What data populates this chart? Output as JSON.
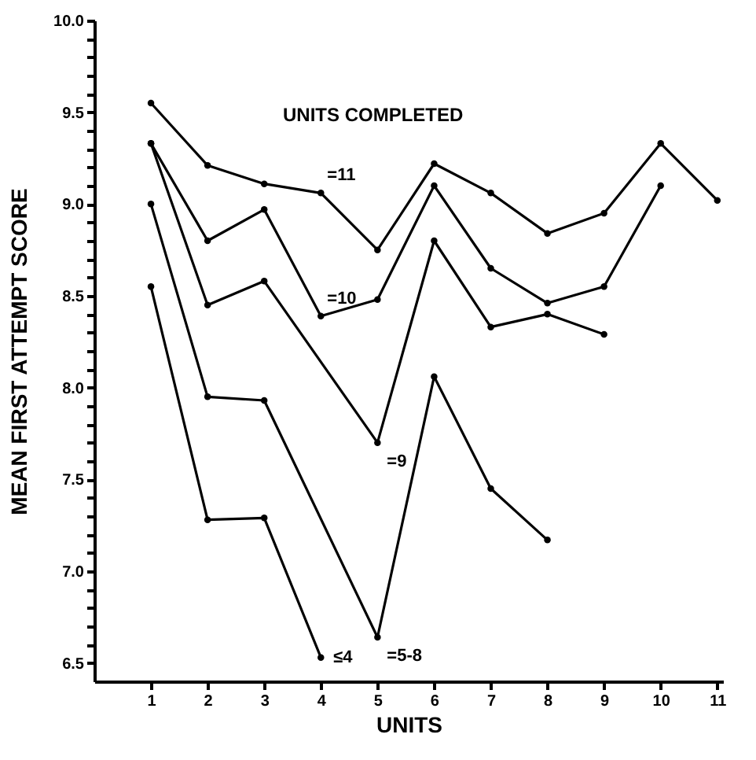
{
  "chart_data": {
    "type": "line",
    "xlabel": "UNITS",
    "ylabel": "MEAN FIRST ATTEMPT SCORE",
    "legend_title": "UNITS COMPLETED",
    "xlim": [
      0,
      11.1
    ],
    "xticks": [
      1,
      2,
      3,
      4,
      5,
      6,
      7,
      8,
      9,
      10,
      11
    ],
    "ylim": [
      6.4,
      10.0
    ],
    "yticks": [
      {
        "value": 6.5,
        "label": "6.5"
      },
      {
        "value": 6.6,
        "label": null
      },
      {
        "value": 6.7,
        "label": null
      },
      {
        "value": 6.8,
        "label": null
      },
      {
        "value": 6.9,
        "label": null
      },
      {
        "value": 7.0,
        "label": "7.0"
      },
      {
        "value": 7.1,
        "label": null
      },
      {
        "value": 7.2,
        "label": null
      },
      {
        "value": 7.3,
        "label": null
      },
      {
        "value": 7.4,
        "label": null
      },
      {
        "value": 7.5,
        "label": "7.5"
      },
      {
        "value": 7.6,
        "label": null
      },
      {
        "value": 7.7,
        "label": null
      },
      {
        "value": 7.8,
        "label": null
      },
      {
        "value": 7.9,
        "label": null
      },
      {
        "value": 8.0,
        "label": "8.0"
      },
      {
        "value": 8.1,
        "label": null
      },
      {
        "value": 8.2,
        "label": null
      },
      {
        "value": 8.3,
        "label": null
      },
      {
        "value": 8.4,
        "label": null
      },
      {
        "value": 8.5,
        "label": "8.5"
      },
      {
        "value": 8.6,
        "label": null
      },
      {
        "value": 8.7,
        "label": null
      },
      {
        "value": 8.8,
        "label": null
      },
      {
        "value": 8.9,
        "label": null
      },
      {
        "value": 9.0,
        "label": "9.0"
      },
      {
        "value": 9.1,
        "label": null
      },
      {
        "value": 9.2,
        "label": null
      },
      {
        "value": 9.3,
        "label": null
      },
      {
        "value": 9.4,
        "label": null
      },
      {
        "value": 9.5,
        "label": "9.5"
      },
      {
        "value": 9.6,
        "label": null
      },
      {
        "value": 9.7,
        "label": null
      },
      {
        "value": 9.8,
        "label": null
      },
      {
        "value": 9.9,
        "label": null
      },
      {
        "value": 10.0,
        "label": "10.0"
      }
    ],
    "grid": false,
    "legend": false,
    "marker": "circle",
    "line_style": "solid",
    "series": [
      {
        "name": "=11",
        "color": "#000000",
        "x": [
          1,
          2,
          3,
          4,
          5,
          6,
          7,
          8,
          9,
          10,
          11
        ],
        "values": [
          9.55,
          9.21,
          9.11,
          9.06,
          8.75,
          9.22,
          9.06,
          8.84,
          8.95,
          9.33,
          9.02
        ]
      },
      {
        "name": "=10",
        "color": "#000000",
        "x": [
          1,
          2,
          3,
          4,
          5,
          6,
          7,
          8,
          9,
          10
        ],
        "values": [
          9.33,
          8.8,
          8.97,
          8.39,
          8.48,
          9.1,
          8.65,
          8.46,
          8.55,
          9.1
        ]
      },
      {
        "name": "=9",
        "color": "#000000",
        "x": [
          1,
          2,
          3,
          5,
          6,
          7,
          8,
          9
        ],
        "values": [
          9.33,
          8.45,
          8.58,
          7.7,
          8.8,
          8.33,
          8.4,
          8.29
        ]
      },
      {
        "name": "=5-8",
        "color": "#000000",
        "x": [
          1,
          2,
          3,
          5,
          6,
          7,
          8
        ],
        "values": [
          9.0,
          7.95,
          7.93,
          6.64,
          8.06,
          7.45,
          7.17
        ]
      },
      {
        "name": "≤4",
        "color": "#000000",
        "x": [
          1,
          2,
          3,
          4
        ],
        "values": [
          8.55,
          7.28,
          7.29,
          6.53
        ]
      }
    ]
  }
}
